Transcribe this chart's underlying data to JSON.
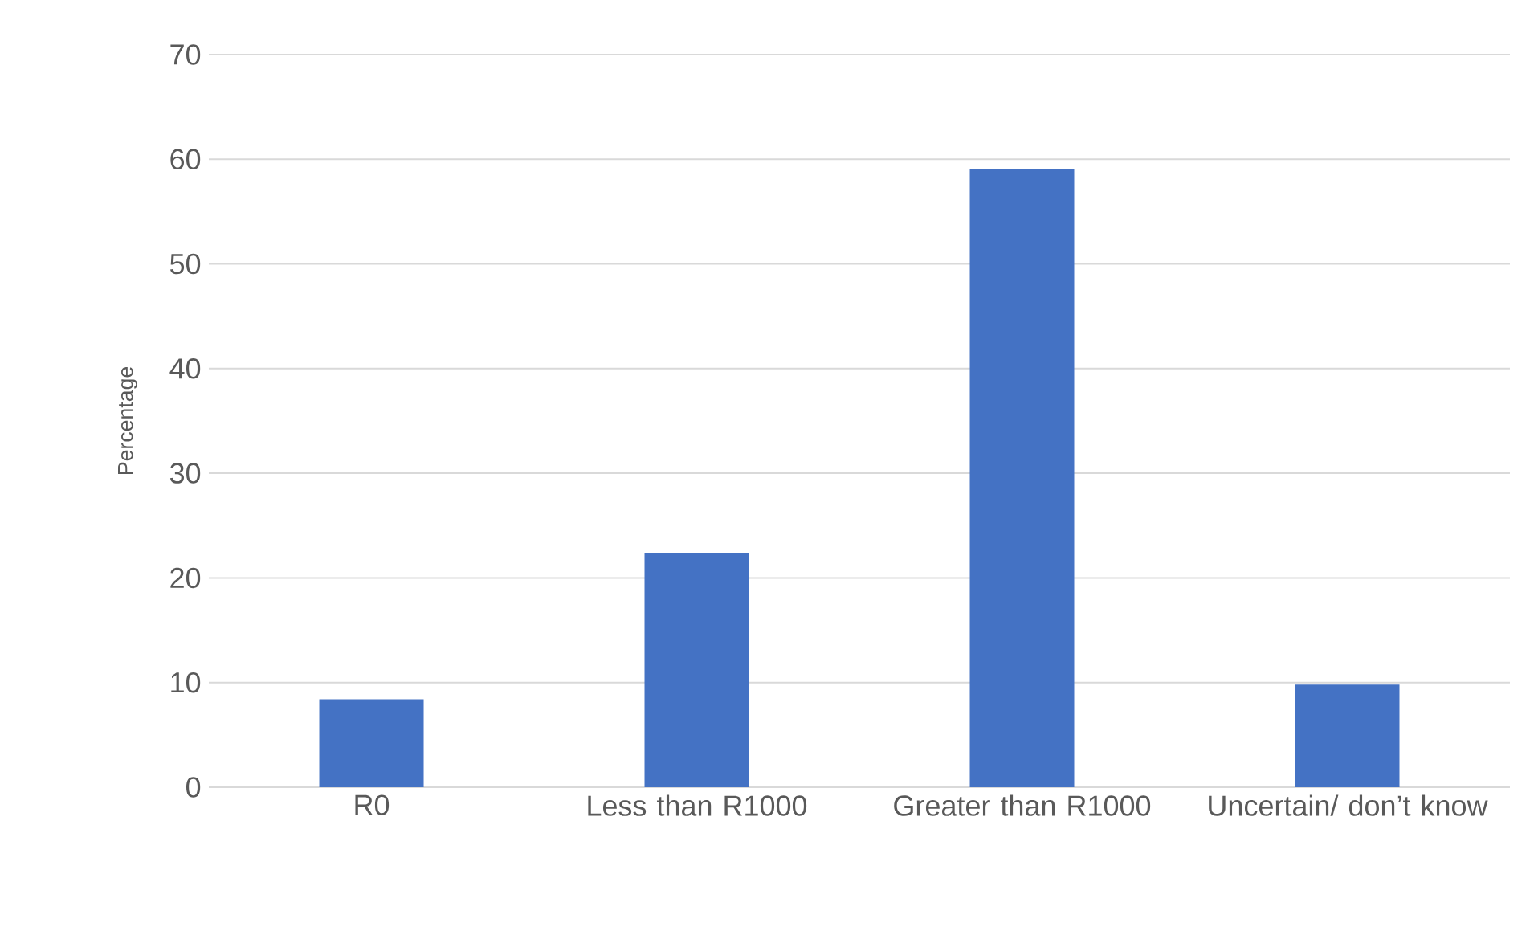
{
  "chart_data": {
    "type": "bar",
    "ylabel": "Percentage",
    "categories": [
      "R0",
      "Less than R1000",
      "Greater than R1000",
      "Uncertain/ don’t know"
    ],
    "values": [
      8.4,
      22.4,
      59.1,
      9.8
    ],
    "color": "#4472c4",
    "ylim": [
      0,
      70
    ],
    "yticks": [
      0,
      10,
      20,
      30,
      40,
      50,
      60,
      70
    ],
    "grid": "y"
  }
}
